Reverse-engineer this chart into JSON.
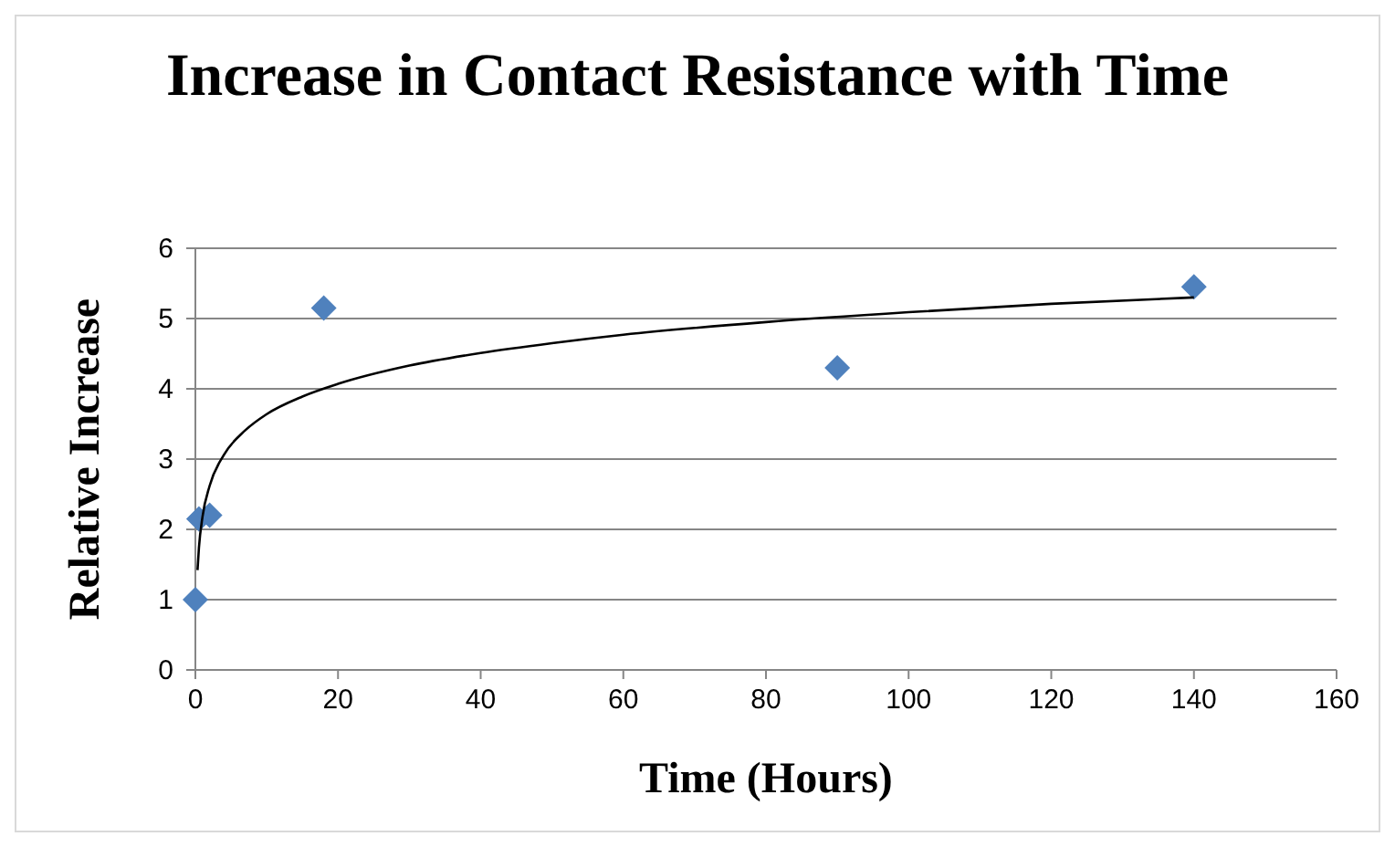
{
  "chart_data": {
    "type": "scatter",
    "title": "Increase in Contact Resistance with Time",
    "xlabel": "Time (Hours)",
    "ylabel": "Relative Increase",
    "series": [
      {
        "color": "#4f81bd",
        "x": [
          0,
          0.5,
          2,
          18,
          90,
          140
        ],
        "values": [
          1,
          2.15,
          2.2,
          5.15,
          4.3,
          5.45
        ],
        "marker": "diamond"
      },
      {
        "type": "line",
        "color": "#000000",
        "x": [
          0.3,
          0.5,
          1,
          2,
          4,
          7,
          10,
          15,
          20,
          30,
          40,
          50,
          60,
          80,
          100,
          120,
          140
        ],
        "values": [
          1.42,
          1.74,
          2.18,
          2.62,
          3.06,
          3.41,
          3.64,
          3.89,
          4.07,
          4.33,
          4.51,
          4.65,
          4.77,
          4.95,
          5.09,
          5.21,
          5.3
        ],
        "marker": "none"
      }
    ],
    "xlim": [
      0,
      160
    ],
    "xticks": [
      0,
      20,
      40,
      60,
      80,
      100,
      120,
      140,
      160
    ],
    "ylim": [
      0,
      6
    ],
    "yticks": [
      0,
      1,
      2,
      3,
      4,
      5,
      6
    ],
    "grid": "y"
  }
}
